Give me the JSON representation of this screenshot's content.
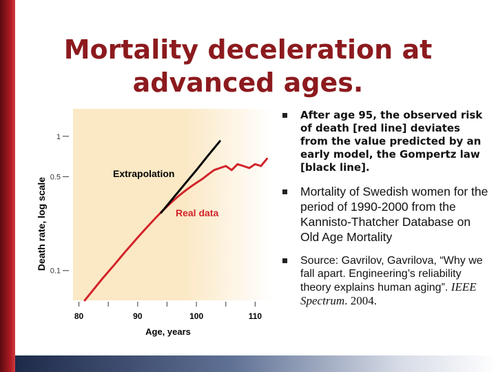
{
  "slide": {
    "title_line1": "Mortality deceleration at",
    "title_line2": "advanced ages.",
    "colors": {
      "title": "#8c1a1e",
      "real_data": "#d2232a",
      "extrapolation": "#000000",
      "chart_bg": "#fbe8c4"
    }
  },
  "bullets": {
    "b1_text": "After age 95, the observed risk of death [red line] deviates from the value predicted by an early model, the Gompertz law [black line].",
    "b2_text": "Mortality of Swedish women for the period of 1990-2000 from the Kannisto-Thatcher Database on Old Age Mortality",
    "b3_prefix": "Source: Gavrilov, Gavrilova, “Why we fall apart. Engineering’s reliability theory explains human aging”. ",
    "b3_journal": "IEEE Spectrum",
    "b3_suffix": ". 2004."
  },
  "chart_data": {
    "type": "line",
    "xlabel": "Age, years",
    "ylabel": "Death rate, log scale",
    "xlim": [
      79,
      113
    ],
    "ylim_log": [
      0.06,
      1.6
    ],
    "x_ticks": [
      80,
      85,
      90,
      95,
      100,
      105,
      110
    ],
    "x_tick_labels": [
      "80",
      "90",
      "100",
      "110"
    ],
    "y_ticks": [
      0.1,
      0.5,
      1
    ],
    "y_tick_labels": [
      "0.1",
      "0.5",
      "1"
    ],
    "series": [
      {
        "name": "Real data",
        "color": "#d2232a",
        "x": [
          81,
          82,
          83,
          84,
          85,
          86,
          87,
          88,
          89,
          90,
          91,
          92,
          93,
          94,
          95,
          96,
          97,
          98,
          99,
          100,
          101,
          102,
          103,
          104,
          105,
          106,
          107,
          108,
          109,
          110,
          111,
          112
        ],
        "y": [
          0.06,
          0.068,
          0.077,
          0.087,
          0.098,
          0.11,
          0.124,
          0.14,
          0.157,
          0.176,
          0.197,
          0.22,
          0.245,
          0.272,
          0.3,
          0.33,
          0.36,
          0.39,
          0.42,
          0.45,
          0.48,
          0.52,
          0.56,
          0.58,
          0.6,
          0.56,
          0.62,
          0.6,
          0.58,
          0.62,
          0.6,
          0.68
        ]
      },
      {
        "name": "Extrapolation",
        "color": "#000000",
        "x": [
          94,
          96,
          98,
          100,
          102,
          104
        ],
        "y": [
          0.27,
          0.345,
          0.44,
          0.56,
          0.72,
          0.92
        ]
      }
    ],
    "annotations": [
      {
        "text": "Extrapolation",
        "near": "black line, upper-left"
      },
      {
        "text": "Real data",
        "near": "red line, below"
      }
    ],
    "grid": false
  }
}
